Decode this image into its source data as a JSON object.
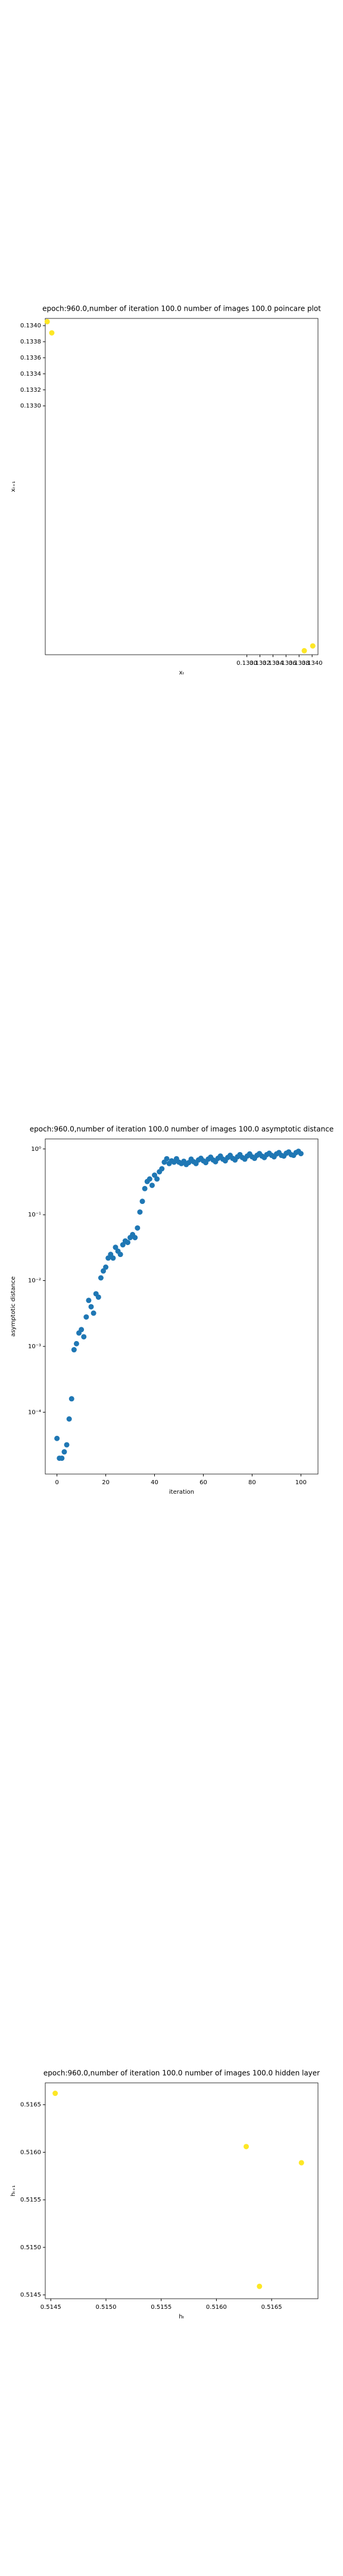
{
  "chart_data": [
    {
      "type": "scatter",
      "title": "epoch:960.0,number of iteration 100.0 number of images 100.0 poincare plot",
      "xlabel": "xₜ",
      "ylabel": "xₜ₊₁",
      "color": "#fde725",
      "x": [
        0.12994,
        0.13001,
        0.13388,
        0.13401
      ],
      "values": [
        0.13405,
        0.13391,
        0.12995,
        0.13001
      ],
      "xlim": [
        0.12991,
        0.13409
      ],
      "ylim": [
        0.1299,
        0.13409
      ],
      "xticks": [
        {
          "value": 0.133,
          "label": "0.1330"
        },
        {
          "value": 0.1332,
          "label": "0.1332"
        },
        {
          "value": 0.1334,
          "label": "0.1334"
        },
        {
          "value": 0.1336,
          "label": "0.1336"
        },
        {
          "value": 0.1338,
          "label": "0.1338"
        },
        {
          "value": 0.134,
          "label": "0.1340"
        }
      ],
      "yticks": [
        {
          "value": 0.133,
          "label": "0.1330"
        },
        {
          "value": 0.1332,
          "label": "0.1332"
        },
        {
          "value": 0.1334,
          "label": "0.1334"
        },
        {
          "value": 0.1336,
          "label": "0.1336"
        },
        {
          "value": 0.1338,
          "label": "0.1338"
        },
        {
          "value": 0.134,
          "label": "0.1340"
        }
      ],
      "log": false
    },
    {
      "type": "scatter",
      "title": "epoch:960.0,number of iteration 100.0  number of images 100.0 asymptotic distance",
      "xlabel": "iteration",
      "ylabel": "asymptotic distance",
      "color": "#1f77b4",
      "x": [
        0,
        1,
        2,
        3,
        4,
        5,
        6,
        7,
        8,
        9,
        10,
        11,
        12,
        13,
        14,
        15,
        16,
        17,
        18,
        19,
        20,
        21,
        22,
        23,
        24,
        25,
        26,
        27,
        28,
        29,
        30,
        31,
        32,
        33,
        34,
        35,
        36,
        37,
        38,
        39,
        40,
        41,
        42,
        43,
        44,
        45,
        46,
        47,
        48,
        49,
        50,
        51,
        52,
        53,
        54,
        55,
        56,
        57,
        58,
        59,
        60,
        61,
        62,
        63,
        64,
        65,
        66,
        67,
        68,
        69,
        70,
        71,
        72,
        73,
        74,
        75,
        76,
        77,
        78,
        79,
        80,
        81,
        82,
        83,
        84,
        85,
        86,
        87,
        88,
        89,
        90,
        91,
        92,
        93,
        94,
        95,
        96,
        97,
        98,
        99,
        100
      ],
      "values": [
        4e-05,
        2e-05,
        2e-05,
        2.5e-05,
        3.2e-05,
        7.9e-05,
        0.00016,
        0.00089,
        0.0011,
        0.0016,
        0.0018,
        0.0014,
        0.0028,
        0.005,
        0.004,
        0.0032,
        0.0063,
        0.0056,
        0.011,
        0.014,
        0.016,
        0.022,
        0.025,
        0.022,
        0.032,
        0.028,
        0.025,
        0.035,
        0.04,
        0.038,
        0.045,
        0.05,
        0.045,
        0.063,
        0.11,
        0.16,
        0.25,
        0.32,
        0.35,
        0.28,
        0.4,
        0.35,
        0.45,
        0.5,
        0.63,
        0.71,
        0.6,
        0.66,
        0.63,
        0.71,
        0.63,
        0.6,
        0.65,
        0.58,
        0.62,
        0.7,
        0.64,
        0.6,
        0.68,
        0.72,
        0.66,
        0.62,
        0.7,
        0.75,
        0.68,
        0.64,
        0.72,
        0.78,
        0.7,
        0.66,
        0.74,
        0.8,
        0.72,
        0.68,
        0.76,
        0.82,
        0.74,
        0.7,
        0.78,
        0.84,
        0.76,
        0.72,
        0.8,
        0.85,
        0.78,
        0.74,
        0.82,
        0.86,
        0.8,
        0.76,
        0.84,
        0.88,
        0.8,
        0.78,
        0.86,
        0.9,
        0.82,
        0.8,
        0.88,
        0.92,
        0.85
      ],
      "xlim": [
        -4.8,
        107
      ],
      "ylim": [
        1.15e-05,
        1.42
      ],
      "xticks": [
        0,
        20,
        40,
        60,
        80,
        100
      ],
      "yticks": [
        {
          "value": 0.0001,
          "label": "10⁻⁴"
        },
        {
          "value": 0.001,
          "label": "10⁻³"
        },
        {
          "value": 0.01,
          "label": "10⁻²"
        },
        {
          "value": 0.1,
          "label": "10⁻¹"
        },
        {
          "value": 1,
          "label": "10⁰"
        }
      ],
      "log": true
    },
    {
      "type": "scatter",
      "title": "epoch:960.0,number of iteration 100.0  number of images 100.0 hidden layer",
      "xlabel": "hₜ",
      "ylabel": "hₜ₊₁",
      "color": "#fde725",
      "x": [
        0.51454,
        0.51627,
        0.51677,
        0.51639
      ],
      "values": [
        0.51662,
        0.51606,
        0.51589,
        0.51459
      ],
      "xlim": [
        0.51445,
        0.51692
      ],
      "ylim": [
        0.51446,
        0.51673
      ],
      "xticks": [
        {
          "value": 0.5145,
          "label": "0.5145"
        },
        {
          "value": 0.515,
          "label": "0.5150"
        },
        {
          "value": 0.5155,
          "label": "0.5155"
        },
        {
          "value": 0.516,
          "label": "0.5160"
        },
        {
          "value": 0.5165,
          "label": "0.5165"
        }
      ],
      "yticks": [
        {
          "value": 0.5145,
          "label": "0.5145"
        },
        {
          "value": 0.515,
          "label": "0.5150"
        },
        {
          "value": 0.5155,
          "label": "0.5155"
        },
        {
          "value": 0.516,
          "label": "0.5160"
        },
        {
          "value": 0.5165,
          "label": "0.5165"
        }
      ],
      "log": false
    }
  ]
}
